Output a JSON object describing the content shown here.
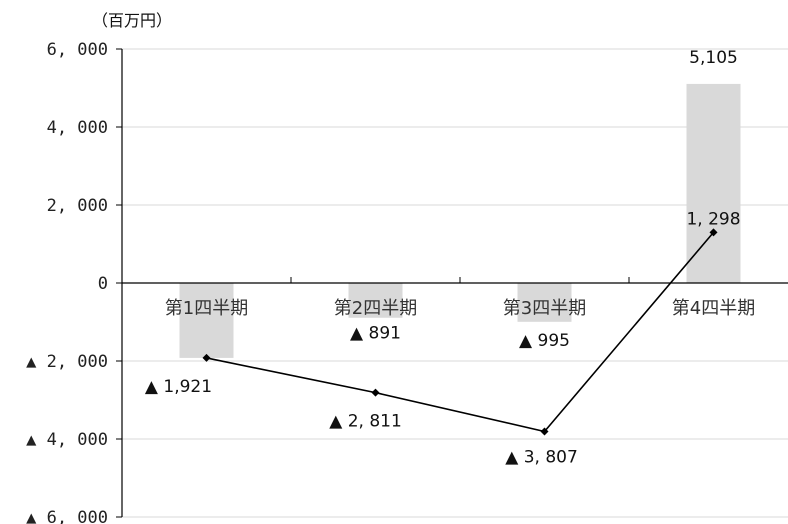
{
  "chart_data": {
    "type": "bar",
    "unit_label": "（百万円）",
    "ylim": [
      -6000,
      6000
    ],
    "yticks": [
      6000,
      4000,
      2000,
      0,
      -2000,
      -4000,
      -6000
    ],
    "ytick_labels": [
      "6, 000",
      "4, 000",
      "2, 000",
      "0",
      "▲ 2, 000",
      "▲ 4, 000",
      "▲ 6, 000"
    ],
    "categories": [
      "第1四半期",
      "第2四半期",
      "第3四半期",
      "第4四半期"
    ],
    "grid": true,
    "series": [
      {
        "type": "bar",
        "color": "#d9d9d9",
        "values": [
          -1921,
          -891,
          -995,
          5105
        ],
        "labels": [
          "▲ 1,921",
          "▲ 891",
          "▲ 995",
          "5,105"
        ]
      },
      {
        "type": "line",
        "color": "#000000",
        "marker": "diamond",
        "values": [
          -1921,
          -2811,
          -3807,
          1298
        ],
        "labels": [
          "",
          "▲ 2, 811",
          "▲ 3, 807",
          "1, 298"
        ]
      }
    ]
  }
}
